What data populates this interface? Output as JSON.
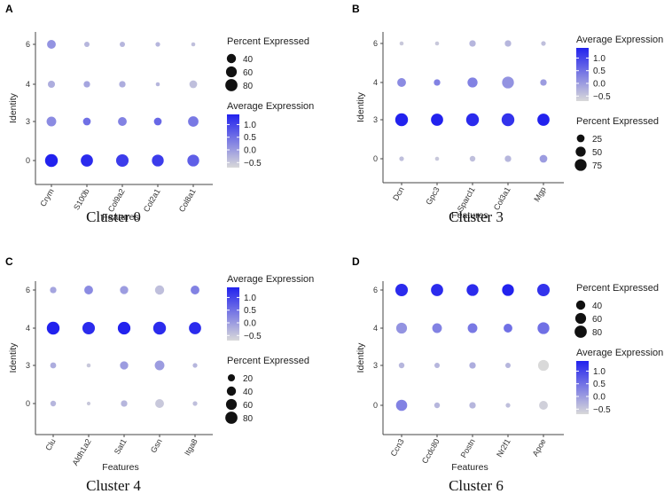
{
  "colors": {
    "low": "#d9d9d9",
    "high": "#2222ee",
    "axis": "#444444",
    "dot_neutral": "#111111"
  },
  "chart_data": [
    {
      "type": "dotplot",
      "panel": "A",
      "caption": "Cluster 0",
      "xlabel": "Features",
      "ylabel": "Identity",
      "features": [
        "Crym",
        "S100b",
        "Col9a2",
        "Col2a1",
        "Col8a1"
      ],
      "identities": [
        "0",
        "3",
        "4",
        "6"
      ],
      "pct": [
        [
          90,
          80,
          85,
          75,
          75
        ],
        [
          45,
          25,
          35,
          25,
          55
        ],
        [
          20,
          15,
          15,
          3,
          25
        ],
        [
          35,
          8,
          8,
          5,
          3
        ]
      ],
      "avg": [
        [
          1.4,
          1.3,
          1.1,
          1.1,
          0.7
        ],
        [
          0.2,
          0.5,
          0.3,
          0.6,
          0.4
        ],
        [
          -0.2,
          -0.1,
          -0.2,
          -0.3,
          -0.4
        ],
        [
          0.1,
          -0.3,
          -0.3,
          -0.3,
          -0.4
        ]
      ],
      "pct_title": "Percent Expressed",
      "pct_breaks": [
        40,
        60,
        80
      ],
      "avg_title": "Average Expression",
      "avg_breaks": [
        "1.0",
        "0.5",
        "0.0",
        "−0.5"
      ],
      "legend_order": "pct-first"
    },
    {
      "type": "dotplot",
      "panel": "B",
      "caption": "Cluster 3",
      "xlabel": "Features",
      "ylabel": "Identity",
      "features": [
        "Dcn",
        "Gpc3",
        "Sparcl1",
        "Col3a1",
        "Mgp"
      ],
      "identities": [
        "0",
        "3",
        "4",
        "6"
      ],
      "pct": [
        [
          5,
          3,
          10,
          15,
          25
        ],
        [
          90,
          80,
          90,
          90,
          80
        ],
        [
          35,
          15,
          50,
          75,
          15
        ],
        [
          3,
          3,
          15,
          15,
          5
        ]
      ],
      "avg": [
        [
          -0.4,
          -0.5,
          -0.4,
          -0.3,
          0.0
        ],
        [
          1.4,
          1.4,
          1.3,
          1.2,
          1.4
        ],
        [
          0.2,
          0.3,
          0.3,
          0.1,
          0.0
        ],
        [
          -0.5,
          -0.5,
          -0.3,
          -0.3,
          -0.4
        ]
      ],
      "pct_title": "Percent Expressed",
      "pct_breaks": [
        25,
        50,
        75
      ],
      "avg_title": "Average Expression",
      "avg_breaks": [
        "1.0",
        "0.5",
        "0.0",
        "−0.5"
      ],
      "legend_order": "avg-first"
    },
    {
      "type": "dotplot",
      "panel": "C",
      "caption": "Cluster 4",
      "xlabel": "Features",
      "ylabel": "Identity",
      "features": [
        "Clu",
        "Aldh1a2",
        "Sat1",
        "Gsn",
        "Itga8"
      ],
      "identities": [
        "0",
        "3",
        "4",
        "6"
      ],
      "pct": [
        [
          10,
          2,
          15,
          35,
          5
        ],
        [
          12,
          3,
          30,
          45,
          5
        ],
        [
          90,
          85,
          88,
          90,
          80
        ],
        [
          15,
          35,
          30,
          40,
          35
        ]
      ],
      "avg": [
        [
          -0.3,
          -0.5,
          -0.3,
          -0.5,
          -0.4
        ],
        [
          -0.2,
          -0.5,
          0.0,
          0.0,
          -0.3
        ],
        [
          1.4,
          1.3,
          1.4,
          1.3,
          1.3
        ],
        [
          -0.1,
          0.2,
          0.0,
          -0.4,
          0.3
        ]
      ],
      "pct_title": "Percent Expressed",
      "pct_breaks": [
        20,
        40,
        60,
        80
      ],
      "avg_title": "Average Expression",
      "avg_breaks": [
        "1.0",
        "0.5",
        "0.0",
        "−0.5"
      ],
      "legend_order": "avg-first"
    },
    {
      "type": "dotplot",
      "panel": "D",
      "caption": "Cluster 6",
      "xlabel": "Features",
      "ylabel": "Identity",
      "features": [
        "Ccn3",
        "Ccdc80",
        "Postn",
        "Nr2f1",
        "Apoe"
      ],
      "identities": [
        "0",
        "3",
        "4",
        "6"
      ],
      "pct": [
        [
          65,
          10,
          15,
          5,
          35
        ],
        [
          10,
          8,
          15,
          8,
          60
        ],
        [
          60,
          45,
          45,
          35,
          75
        ],
        [
          85,
          80,
          75,
          75,
          85
        ]
      ],
      "avg": [
        [
          0.3,
          -0.3,
          -0.3,
          -0.4,
          -0.6
        ],
        [
          -0.3,
          -0.3,
          -0.2,
          -0.3,
          -0.7
        ],
        [
          0.1,
          0.3,
          0.4,
          0.5,
          0.5
        ],
        [
          1.3,
          1.3,
          1.3,
          1.4,
          1.2
        ]
      ],
      "pct_title": "Percent Expressed",
      "pct_breaks": [
        40,
        60,
        80
      ],
      "avg_title": "Average Expression",
      "avg_breaks": [
        "1.0",
        "0.5",
        "0.0",
        "−0.5"
      ],
      "legend_order": "pct-first"
    }
  ]
}
